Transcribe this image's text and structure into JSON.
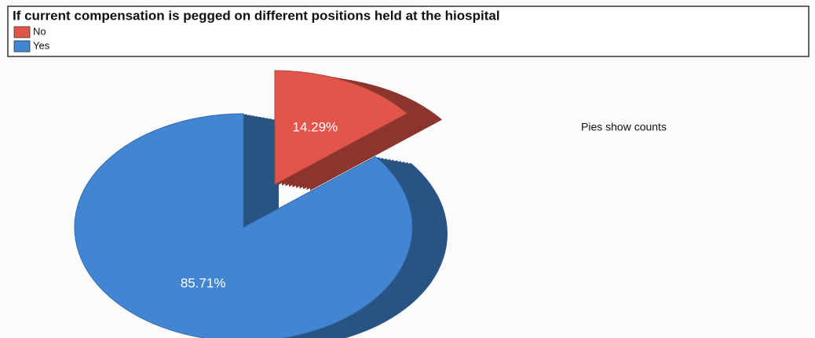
{
  "chart_data": {
    "type": "pie",
    "title": "If current compensation is pegged on different positions held at the hiospital",
    "categories": [
      "No",
      "Yes"
    ],
    "values": [
      14.29,
      85.71
    ],
    "value_labels": [
      "14.29%",
      "85.71%"
    ],
    "colors": [
      "#e2554b",
      "#4286d3"
    ],
    "annotation": "Pies show counts",
    "legend": "top-left"
  }
}
